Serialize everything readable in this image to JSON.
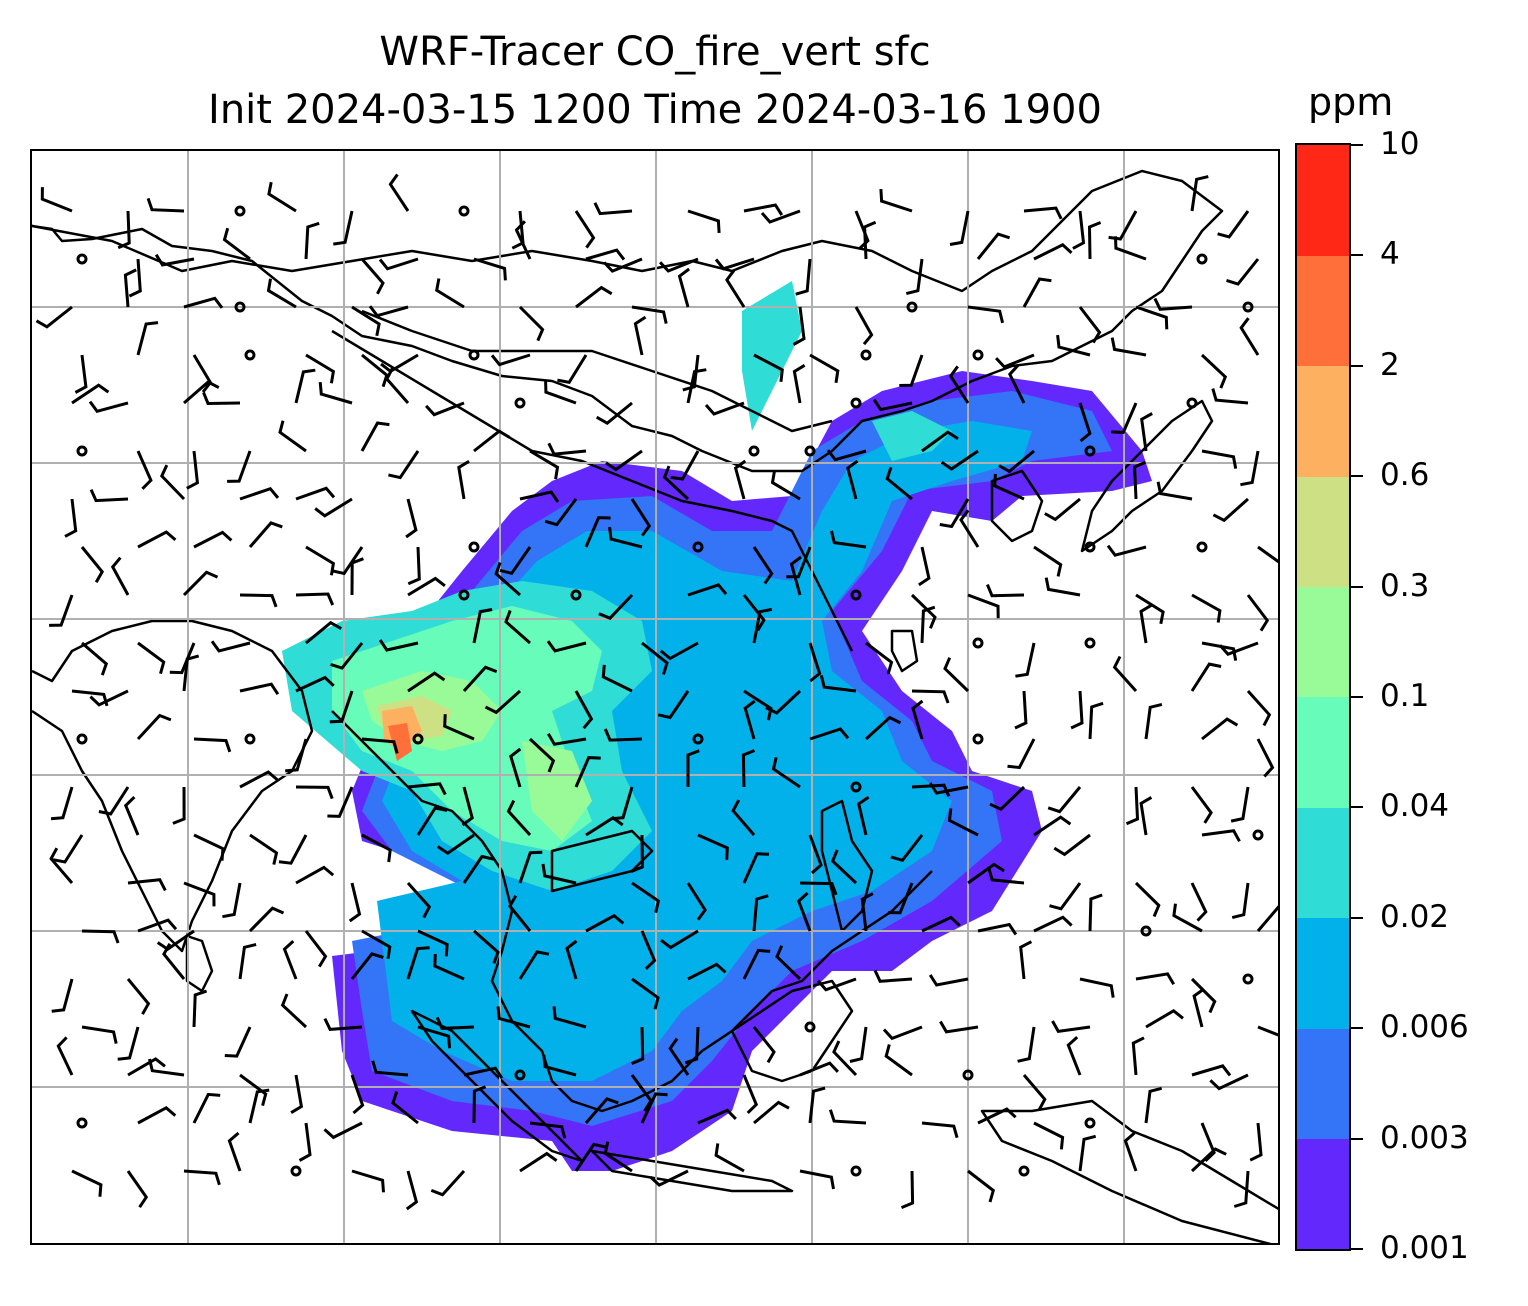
{
  "title": {
    "line1": "WRF-Tracer CO_fire_vert sfc",
    "line2": "Init 2024-03-15 1200 Time 2024-03-16 1900"
  },
  "colorbar": {
    "unit": "ppm",
    "levels": [
      "0.001",
      "0.003",
      "0.006",
      "0.02",
      "0.04",
      "0.1",
      "0.3",
      "0.6",
      "2",
      "4",
      "10"
    ],
    "colors": [
      "#6328fc",
      "#3474f6",
      "#02b1ea",
      "#2fdcd6",
      "#67fcb9",
      "#99fa98",
      "#cde184",
      "#fdb060",
      "#ff6f3a",
      "#ff2715"
    ]
  },
  "map": {
    "gridline_color": "#b0b0b0",
    "coastline_color": "#000000",
    "barb_color": "#000000"
  }
}
